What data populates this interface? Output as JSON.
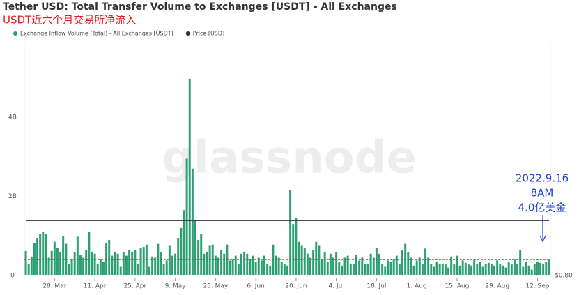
{
  "chart_data": {
    "type": "bar",
    "title": "Tether USD: Total Transfer Volume to Exchanges [USDT] - All Exchanges",
    "subtitle": "USDT近六个月交易所净流入",
    "watermark": "glassnode",
    "annotation": [
      "2022.9.16",
      "8AM",
      "4.0亿美金"
    ],
    "ref_line": 0.4,
    "ref_color": "#e03030",
    "categories": [
      null,
      null,
      null,
      null,
      null,
      null,
      null,
      null,
      null,
      null,
      "28. Mar",
      null,
      null,
      null,
      null,
      null,
      null,
      null,
      null,
      null,
      null,
      null,
      null,
      null,
      "11. Apr",
      null,
      null,
      null,
      null,
      null,
      null,
      null,
      null,
      null,
      null,
      null,
      null,
      null,
      "25. Apr",
      null,
      null,
      null,
      null,
      null,
      null,
      null,
      null,
      null,
      null,
      null,
      null,
      null,
      "9. May",
      null,
      null,
      null,
      null,
      null,
      null,
      null,
      null,
      null,
      null,
      null,
      null,
      null,
      "23. May",
      null,
      null,
      null,
      null,
      null,
      null,
      null,
      null,
      null,
      null,
      null,
      null,
      null,
      "6. Jun",
      null,
      null,
      null,
      null,
      null,
      null,
      null,
      null,
      null,
      null,
      null,
      null,
      null,
      "20. Jun",
      null,
      null,
      null,
      null,
      null,
      null,
      null,
      null,
      null,
      null,
      null,
      null,
      null,
      "4. Jul",
      null,
      null,
      null,
      null,
      null,
      null,
      null,
      null,
      null,
      null,
      null,
      null,
      null,
      "18. Jul",
      null,
      null,
      null,
      null,
      null,
      null,
      null,
      null,
      null,
      null,
      null,
      null,
      null,
      "1. Aug",
      null,
      null,
      null,
      null,
      null,
      null,
      null,
      null,
      null,
      null,
      null,
      null,
      null,
      "15. Aug",
      null,
      null,
      null,
      null,
      null,
      null,
      null,
      null,
      null,
      null,
      null,
      null,
      null,
      "29. Aug",
      null,
      null,
      null,
      null,
      null,
      null,
      null,
      null,
      null,
      null,
      null,
      null,
      null,
      "12. Sep",
      null,
      null,
      null,
      null
    ],
    "series": [
      {
        "name": "Exchange Inflow Volume (Total) - All Exchanges [USDT]",
        "color": "#2e9e74",
        "values": [
          0.62,
          0.28,
          0.48,
          0.82,
          0.95,
          1.05,
          1.1,
          1.05,
          0.45,
          0.62,
          0.85,
          0.7,
          0.58,
          1.0,
          0.8,
          0.3,
          0.42,
          0.6,
          0.98,
          0.52,
          0.45,
          0.65,
          1.1,
          0.6,
          0.55,
          0.3,
          0.4,
          0.35,
          0.82,
          0.9,
          0.5,
          0.6,
          0.55,
          0.22,
          0.6,
          0.5,
          0.65,
          0.6,
          0.65,
          0.28,
          0.7,
          0.72,
          0.78,
          0.22,
          0.48,
          0.45,
          0.8,
          0.6,
          0.28,
          0.38,
          0.75,
          0.5,
          0.55,
          0.95,
          1.2,
          1.65,
          2.95,
          4.97,
          2.7,
          1.4,
          0.9,
          1.05,
          0.55,
          0.6,
          0.75,
          0.78,
          0.5,
          0.45,
          0.65,
          0.55,
          0.78,
          0.38,
          0.4,
          0.5,
          0.3,
          0.55,
          0.6,
          0.55,
          0.42,
          0.5,
          0.35,
          0.45,
          0.38,
          0.5,
          0.3,
          0.25,
          0.78,
          0.5,
          0.45,
          0.35,
          0.3,
          0.25,
          2.15,
          1.3,
          1.45,
          0.85,
          0.75,
          0.7,
          0.55,
          0.45,
          0.65,
          0.85,
          0.75,
          0.42,
          0.6,
          0.35,
          0.55,
          0.45,
          0.6,
          0.35,
          0.25,
          0.45,
          0.5,
          0.3,
          0.28,
          0.52,
          0.38,
          0.45,
          0.3,
          0.28,
          0.55,
          0.45,
          0.7,
          0.55,
          0.3,
          0.22,
          0.38,
          0.35,
          0.42,
          0.5,
          0.28,
          0.65,
          0.8,
          0.58,
          0.45,
          0.25,
          0.38,
          0.45,
          0.3,
          0.68,
          0.45,
          0.3,
          0.22,
          0.35,
          0.3,
          0.3,
          0.28,
          0.2,
          0.48,
          0.3,
          0.5,
          0.25,
          0.38,
          0.32,
          0.28,
          0.25,
          0.4,
          0.3,
          0.35,
          0.22,
          0.3,
          0.32,
          0.3,
          0.25,
          0.38,
          0.3,
          0.25,
          0.2,
          0.35,
          0.28,
          0.4,
          0.3,
          0.65,
          0.22,
          0.35,
          0.25,
          0.15,
          0.3,
          0.35,
          0.32,
          0.28,
          0.35,
          0.4
        ]
      },
      {
        "name": "Price [USD]",
        "color": "#333333",
        "type": "line",
        "axis": "y2",
        "values": [
          1,
          1,
          1,
          1,
          1,
          1,
          1,
          1,
          1,
          1,
          1,
          1,
          1,
          1,
          1,
          1,
          1,
          1,
          1,
          1,
          1,
          1,
          1,
          1,
          1,
          1,
          1,
          1,
          1,
          1,
          1,
          1,
          1,
          1,
          1,
          1,
          1,
          1,
          1,
          1,
          1,
          1,
          1,
          1,
          1,
          1,
          1,
          1,
          1,
          1,
          1,
          1,
          1,
          1,
          1,
          1,
          1,
          1,
          1,
          1,
          1,
          1,
          1,
          1,
          1,
          1,
          1,
          1,
          1,
          1,
          1,
          1,
          1,
          1,
          1,
          1,
          1,
          1,
          1,
          1,
          1,
          1,
          1,
          1,
          1,
          1,
          1,
          1,
          1,
          1,
          1,
          1,
          1,
          1,
          1,
          1,
          1,
          1,
          1,
          1,
          1,
          1,
          1,
          1,
          1,
          1,
          1,
          1,
          1,
          1,
          1,
          1,
          1,
          1,
          1,
          1,
          1,
          1,
          1,
          1,
          1,
          1,
          1,
          1,
          1,
          1,
          1,
          1,
          1,
          1,
          1,
          1,
          1,
          1,
          1,
          1,
          1,
          1,
          1,
          1,
          1,
          1,
          1,
          1,
          1,
          1,
          1,
          1,
          1,
          1,
          1,
          1,
          1,
          1,
          1,
          1,
          1,
          1,
          1,
          1,
          1,
          1,
          1,
          1,
          1,
          1,
          1,
          1,
          1,
          1,
          1,
          1,
          1,
          1,
          1,
          1,
          1,
          1,
          1,
          1,
          1,
          1,
          1
        ]
      }
    ],
    "ylim": [
      0,
      5.9
    ],
    "yticks": [
      0,
      {
        "value": 2,
        "label": "2B"
      },
      {
        "value": 4,
        "label": "4B"
      }
    ],
    "y2lim": [
      0.8,
      1.65
    ],
    "y2ticks": [
      {
        "value": 0.8,
        "label": "$0.80"
      }
    ],
    "grid": false
  }
}
